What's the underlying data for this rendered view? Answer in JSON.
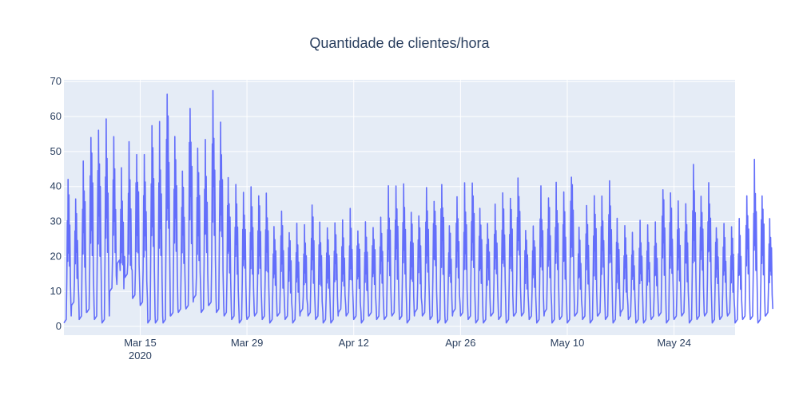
{
  "chart_data": {
    "type": "line",
    "title": "Quantidade de clientes/hora",
    "xlabel": "",
    "ylabel": "",
    "x_range": [
      "2020-03-05",
      "2020-06-01"
    ],
    "ylim": [
      -2.5,
      70.5
    ],
    "y_ticks": [
      0,
      10,
      20,
      30,
      40,
      50,
      60,
      70
    ],
    "x_ticks": [
      {
        "date": "2020-03-15",
        "label": "Mar 15",
        "sublabel": "2020"
      },
      {
        "date": "2020-03-29",
        "label": "Mar 29",
        "sublabel": ""
      },
      {
        "date": "2020-04-12",
        "label": "Apr 12",
        "sublabel": ""
      },
      {
        "date": "2020-04-26",
        "label": "Apr 26",
        "sublabel": ""
      },
      {
        "date": "2020-05-10",
        "label": "May 10",
        "sublabel": ""
      },
      {
        "date": "2020-05-24",
        "label": "May 24",
        "sublabel": ""
      }
    ],
    "grid": true,
    "line_color": "#636efa",
    "plot_bg": "#e5ecf6",
    "series": [
      {
        "daily_peaks": [
          42,
          38,
          47,
          55,
          58,
          57,
          52,
          43,
          51,
          52,
          50,
          58,
          56,
          67,
          53,
          45,
          65,
          50,
          53,
          67,
          60,
          43,
          40,
          38,
          38,
          38,
          38,
          30,
          32,
          28,
          28,
          28,
          35,
          30,
          28,
          30,
          30,
          32,
          29,
          30,
          30,
          32,
          38,
          39,
          42,
          34,
          33,
          38,
          38,
          42,
          30,
          37,
          39,
          43,
          33,
          30,
          34,
          38,
          37,
          45,
          29,
          30,
          38,
          38,
          41,
          38,
          45,
          28,
          33,
          37,
          38,
          40,
          30,
          28,
          27,
          30,
          28,
          29,
          41,
          38,
          35,
          36,
          44,
          38,
          43,
          30,
          29,
          28,
          30,
          37,
          46,
          39,
          32
        ],
        "daily_lows": [
          1,
          6,
          2,
          4,
          2,
          1,
          10,
          18,
          14,
          8,
          6,
          1,
          1,
          1,
          3,
          4,
          5,
          8,
          4,
          6,
          4,
          3,
          2,
          1,
          2,
          3,
          2,
          1,
          3,
          2,
          1,
          4,
          3,
          2,
          1,
          1,
          4,
          3,
          2,
          1,
          3,
          2,
          2,
          3,
          2,
          1,
          4,
          3,
          2,
          1,
          1,
          4,
          3,
          2,
          1,
          1,
          3,
          2,
          1,
          3,
          3,
          2,
          1,
          4,
          1,
          2,
          1,
          3,
          2,
          1,
          3,
          2,
          1,
          4,
          2,
          1,
          1,
          2,
          3,
          1,
          2,
          3,
          1,
          2,
          3,
          1,
          2,
          3,
          1,
          2,
          2,
          1,
          3
        ]
      }
    ]
  }
}
